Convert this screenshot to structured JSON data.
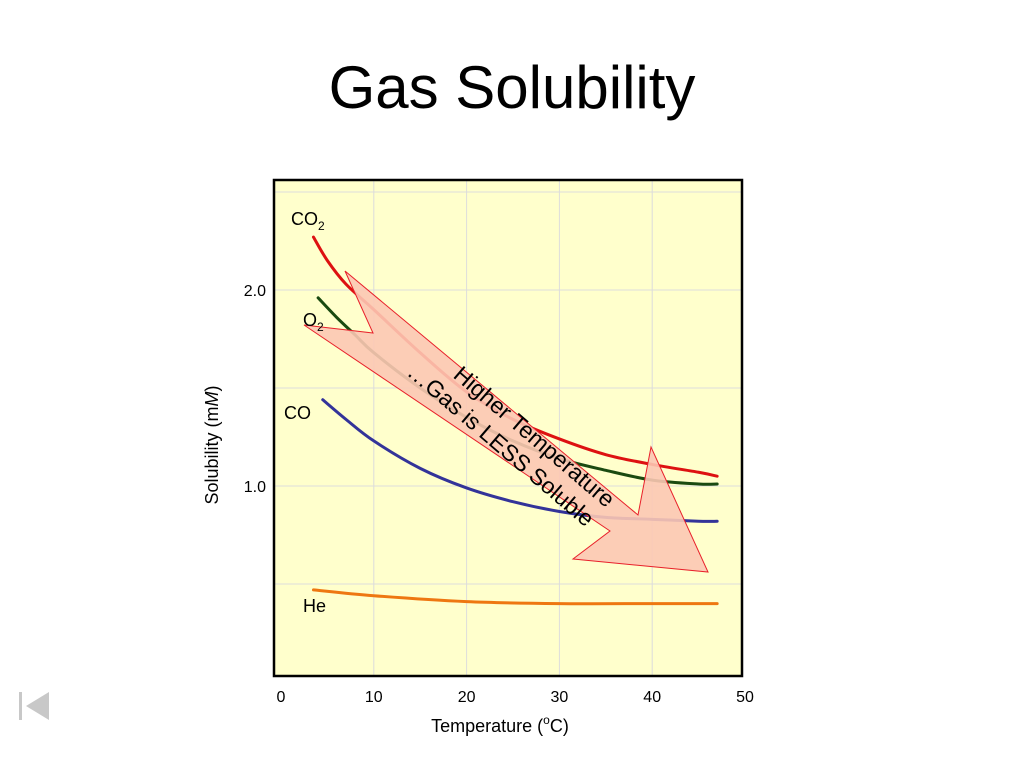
{
  "slide": {
    "title": "Gas Solubility"
  },
  "nav": {
    "back_icon": "first-slide-icon"
  },
  "colors": {
    "plot_background": "#ffffcc",
    "grid": "#dcdcdc",
    "arrow_fill": "#fcc8b4",
    "arrow_stroke": "#e8202a"
  },
  "chart_data": {
    "type": "line",
    "title": "",
    "xlabel_main": "Temperature (",
    "xlabel_sup": "o",
    "xlabel_end": "C)",
    "ylabel_main": "Solubility (m",
    "ylabel_ital": "M",
    "ylabel_end": ")",
    "xlim": [
      0,
      50
    ],
    "ylim": [
      0,
      2.5
    ],
    "x_ticks": [
      0,
      10,
      20,
      30,
      40,
      50
    ],
    "x_tick_labels": [
      "0",
      "10",
      "20",
      "30",
      "40",
      "50"
    ],
    "y_ticks": [
      1.0,
      2.0
    ],
    "y_tick_labels": [
      "1.0",
      "2.0"
    ],
    "grid": true,
    "series": [
      {
        "name": "CO",
        "sub": "2",
        "color": "#dd1111",
        "x": [
          3.5,
          5,
          7,
          10,
          15,
          20,
          25,
          30,
          35,
          40,
          45,
          47
        ],
        "y": [
          2.27,
          2.15,
          2.03,
          1.9,
          1.68,
          1.48,
          1.34,
          1.24,
          1.16,
          1.11,
          1.07,
          1.05
        ]
      },
      {
        "name": "O",
        "sub": "2",
        "color": "#1a4a10",
        "x": [
          4,
          6,
          8,
          10,
          15,
          20,
          25,
          30,
          35,
          40,
          45,
          47
        ],
        "y": [
          1.96,
          1.86,
          1.77,
          1.68,
          1.5,
          1.35,
          1.23,
          1.14,
          1.08,
          1.03,
          1.01,
          1.01
        ]
      },
      {
        "name": "CO",
        "sub": "",
        "color": "#333399",
        "x": [
          4.5,
          7,
          10,
          15,
          20,
          25,
          30,
          35,
          40,
          45,
          47
        ],
        "y": [
          1.44,
          1.34,
          1.23,
          1.09,
          0.99,
          0.92,
          0.87,
          0.84,
          0.83,
          0.82,
          0.82
        ]
      },
      {
        "name": "He",
        "sub": "",
        "color": "#ee7711",
        "x": [
          3.5,
          10,
          20,
          30,
          40,
          47
        ],
        "y": [
          0.47,
          0.44,
          0.41,
          0.4,
          0.4,
          0.4
        ]
      }
    ],
    "annotation": {
      "line1": "Higher Temperature",
      "line2": "…Gas is LESS Soluble"
    }
  }
}
